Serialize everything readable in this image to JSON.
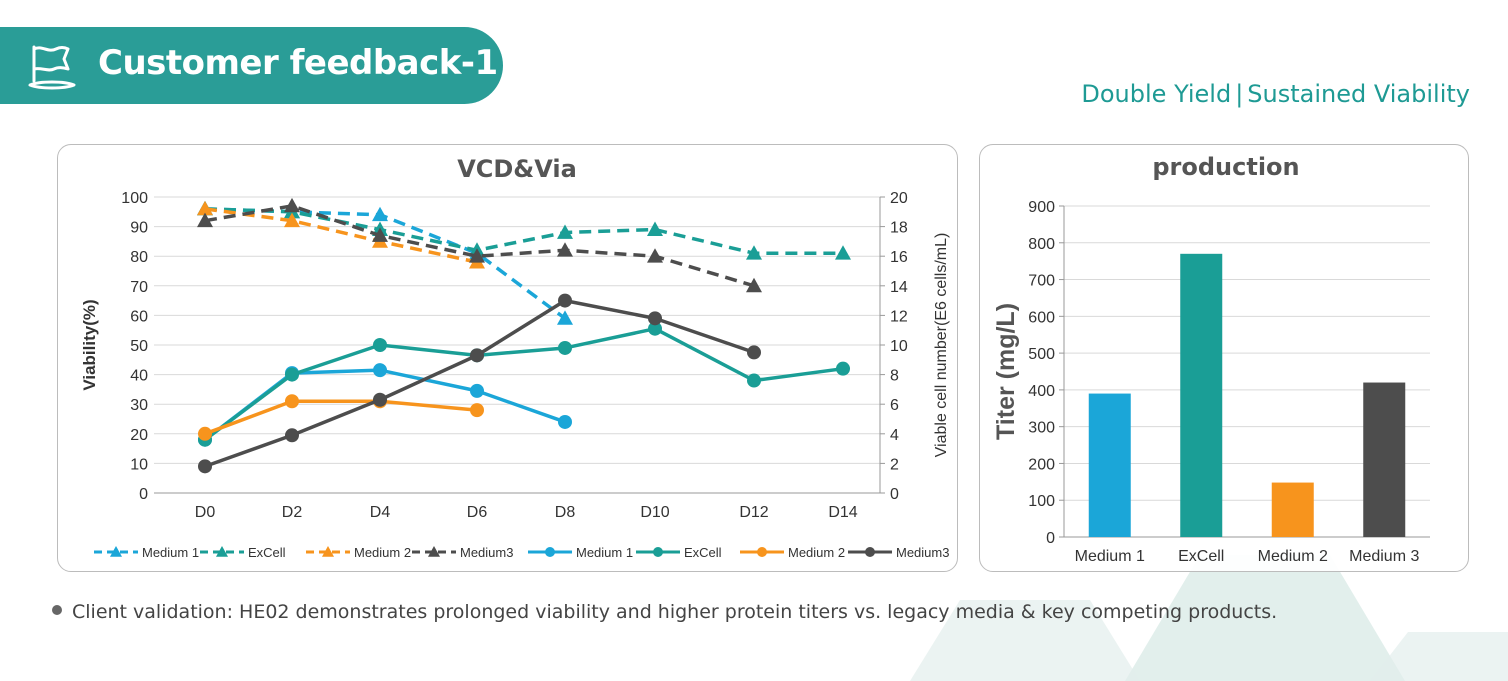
{
  "header": {
    "title": "Customer feedback-1",
    "tagline_left": "Double Yield",
    "tagline_sep": "|",
    "tagline_right": "Sustained Viability"
  },
  "footnote": "Client validation: HE02 demonstrates prolonged viability and higher protein titers vs. legacy media & key competing products.",
  "colors": {
    "medium1": "#1ba6d8",
    "excell": "#1a9e96",
    "medium2": "#f7941d",
    "medium3": "#4d4d4d",
    "banner": "#2a9d97"
  },
  "chart_data": [
    {
      "type": "line",
      "title": "VCD&Via",
      "categories": [
        "D0",
        "D2",
        "D4",
        "D6",
        "D8",
        "D10",
        "D12",
        "D14"
      ],
      "ylabel_left": "Viability(%)",
      "ylabel_right": "Viable cell number(E6 cells/mL)",
      "ylim_left": [
        0,
        100
      ],
      "yticks_left": [
        0,
        10,
        20,
        30,
        40,
        50,
        60,
        70,
        80,
        90,
        100
      ],
      "ylim_right": [
        0,
        20
      ],
      "yticks_right": [
        0,
        2,
        4,
        6,
        8,
        10,
        12,
        14,
        16,
        18,
        20
      ],
      "series": [
        {
          "name": "Medium 1",
          "axis": "left",
          "style": "dashed",
          "marker": "triangle",
          "color": "#1ba6d8",
          "values": [
            96,
            95,
            94,
            81,
            59,
            null,
            null,
            null
          ]
        },
        {
          "name": "ExCell",
          "axis": "left",
          "style": "dashed",
          "marker": "triangle",
          "color": "#1a9e96",
          "values": [
            96,
            95,
            89,
            82,
            88,
            89,
            81,
            81
          ]
        },
        {
          "name": "Medium 2",
          "axis": "left",
          "style": "dashed",
          "marker": "triangle",
          "color": "#f7941d",
          "values": [
            96,
            92,
            85,
            78,
            null,
            null,
            null,
            null
          ]
        },
        {
          "name": "Medium3",
          "axis": "left",
          "style": "dashed",
          "marker": "triangle",
          "color": "#4d4d4d",
          "values": [
            92,
            97,
            87,
            80,
            82,
            80,
            70,
            null
          ]
        },
        {
          "name": "Medium 1",
          "axis": "right",
          "style": "solid",
          "marker": "circle",
          "color": "#1ba6d8",
          "values": [
            3.6,
            8.1,
            8.3,
            6.9,
            4.8,
            null,
            null,
            null
          ]
        },
        {
          "name": "ExCell",
          "axis": "right",
          "style": "solid",
          "marker": "circle",
          "color": "#1a9e96",
          "values": [
            3.6,
            8.0,
            10.0,
            9.3,
            9.8,
            11.1,
            7.6,
            8.4
          ]
        },
        {
          "name": "Medium 2",
          "axis": "right",
          "style": "solid",
          "marker": "circle",
          "color": "#f7941d",
          "values": [
            4.0,
            6.2,
            6.2,
            5.6,
            null,
            null,
            null,
            null
          ]
        },
        {
          "name": "Medium3",
          "axis": "right",
          "style": "solid",
          "marker": "circle",
          "color": "#4d4d4d",
          "values": [
            1.8,
            3.9,
            6.3,
            9.3,
            13.0,
            11.8,
            9.5,
            null
          ]
        }
      ],
      "legend": [
        {
          "label": "Medium 1",
          "style": "dashed",
          "marker": "triangle",
          "color": "#1ba6d8"
        },
        {
          "label": "ExCell",
          "style": "dashed",
          "marker": "triangle",
          "color": "#1a9e96"
        },
        {
          "label": "Medium 2",
          "style": "dashed",
          "marker": "triangle",
          "color": "#f7941d"
        },
        {
          "label": "Medium3",
          "style": "dashed",
          "marker": "triangle",
          "color": "#4d4d4d"
        },
        {
          "label": "Medium 1",
          "style": "solid",
          "marker": "circle",
          "color": "#1ba6d8"
        },
        {
          "label": "ExCell",
          "style": "solid",
          "marker": "circle",
          "color": "#1a9e96"
        },
        {
          "label": "Medium 2",
          "style": "solid",
          "marker": "circle",
          "color": "#f7941d"
        },
        {
          "label": "Medium3",
          "style": "solid",
          "marker": "circle",
          "color": "#4d4d4d"
        }
      ],
      "legend_position": "bottom",
      "grid": true
    },
    {
      "type": "bar",
      "title": "production",
      "categories": [
        "Medium 1",
        "ExCell",
        "Medium 2",
        "Medium 3"
      ],
      "values": [
        390,
        770,
        148,
        420
      ],
      "colors": [
        "#1ba6d8",
        "#1a9e96",
        "#f7941d",
        "#4d4d4d"
      ],
      "ylabel": "Titer (mg/L)",
      "ylim": [
        0,
        900
      ],
      "yticks": [
        0,
        100,
        200,
        300,
        400,
        500,
        600,
        700,
        800,
        900
      ],
      "grid": true
    }
  ]
}
